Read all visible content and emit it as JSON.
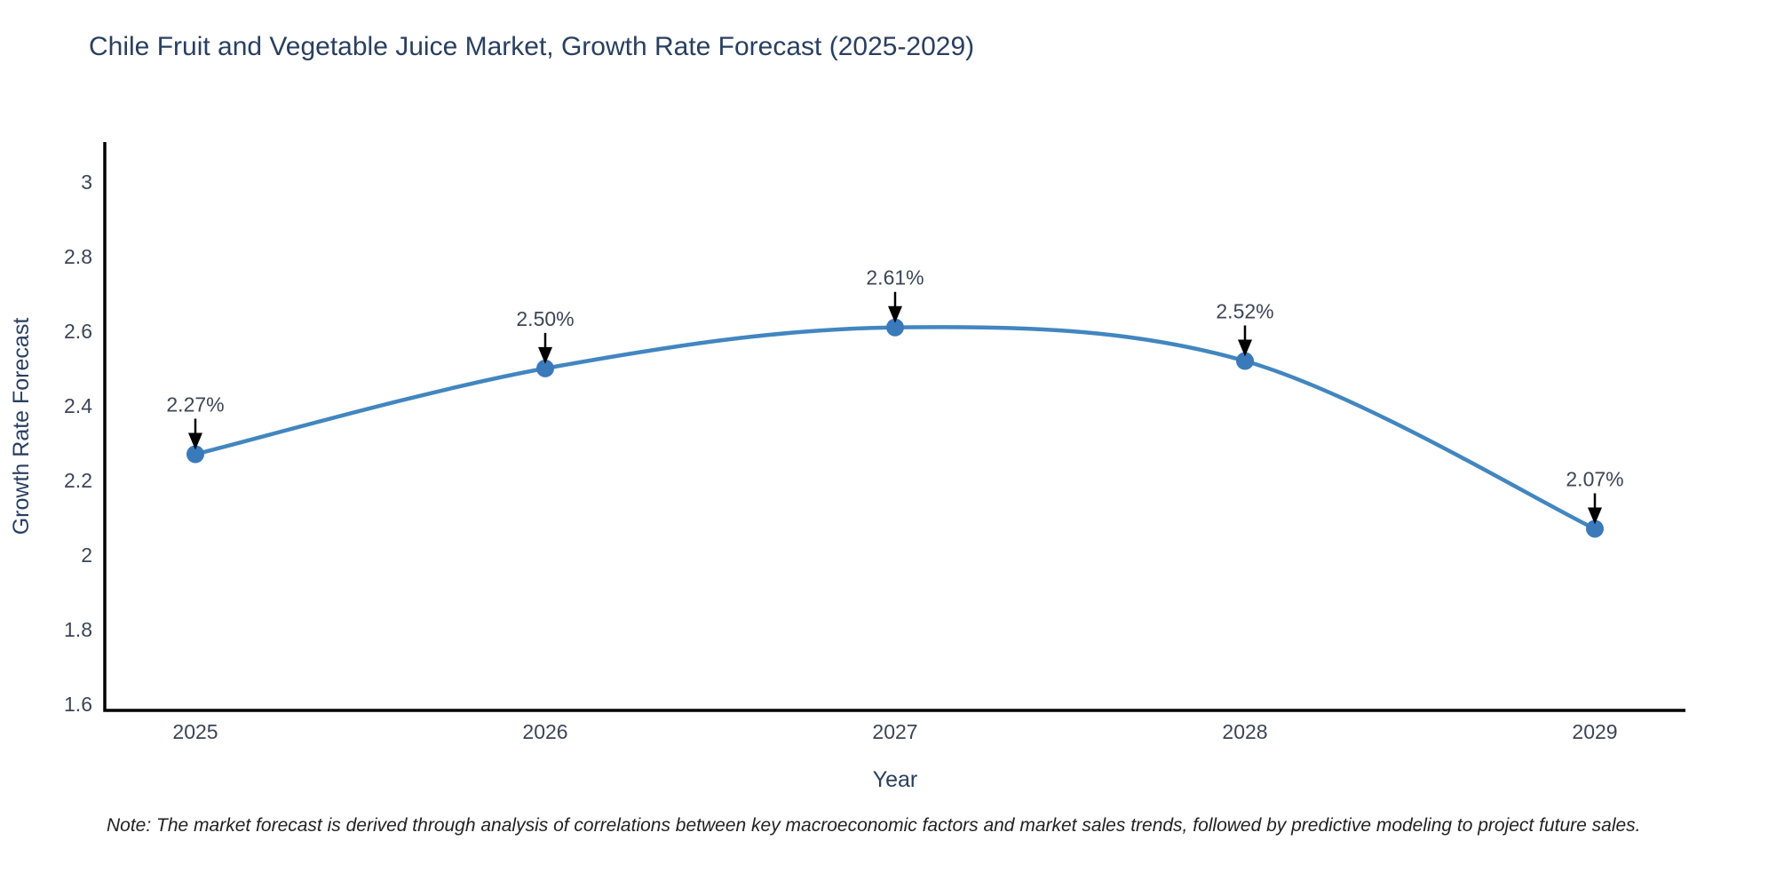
{
  "title": "Chile Fruit and Vegetable Juice Market, Growth Rate Forecast (2025-2029)",
  "note": "Note: The market forecast is derived through analysis of correlations between key macroeconomic factors and market sales trends, followed by predictive modeling to project future sales.",
  "chart_data": {
    "type": "line",
    "line_shape": "spline",
    "title": "Chile Fruit and Vegetable Juice Market, Growth Rate Forecast (2025-2029)",
    "xlabel": "Year",
    "ylabel": "Growth Rate Forecast",
    "categories": [
      "2025",
      "2026",
      "2027",
      "2028",
      "2029"
    ],
    "series": [
      {
        "name": "Growth Rate Forecast",
        "values": [
          2.27,
          2.5,
          2.61,
          2.52,
          2.07
        ]
      }
    ],
    "point_labels": [
      "2.27%",
      "2.50%",
      "2.61%",
      "2.52%",
      "2.07%"
    ],
    "ylim": [
      1.583,
      3.107
    ],
    "yticks": [
      3,
      2.8,
      2.6,
      2.4,
      2.2,
      2,
      1.8,
      1.6
    ],
    "grid": false,
    "legend_position": "none",
    "annotations": "black arrows pointing down at each data point with percentage labels above",
    "colors": {
      "line": "#4286c0",
      "marker": "#3a7abb",
      "arrow": "#000000",
      "axis_line": "#000000",
      "title_text": "#2a3f5f",
      "axis_title_text": "#2a3f5f",
      "tick_text": "#3c4555",
      "annotation_text": "#3c4555",
      "background": "#ffffff"
    }
  }
}
